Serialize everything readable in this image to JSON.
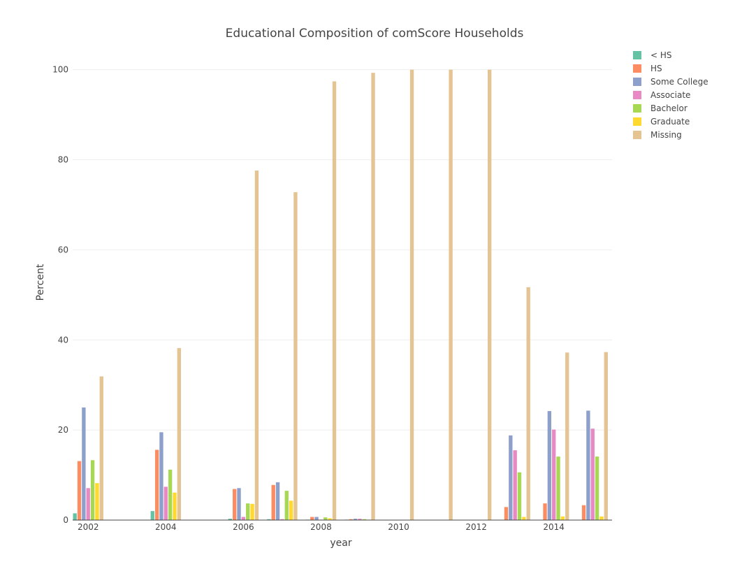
{
  "chart_data": {
    "type": "bar",
    "title": "Educational Composition of comScore Households",
    "xlabel": "year",
    "ylabel": "Percent",
    "x": [
      2002,
      2004,
      2006,
      2007,
      2008,
      2009,
      2010,
      2011,
      2012,
      2013,
      2014,
      2015
    ],
    "xlim": [
      2001.6,
      2015.5
    ],
    "ylim": [
      0,
      101.5
    ],
    "xticks": [
      2002,
      2004,
      2006,
      2008,
      2010,
      2012,
      2014
    ],
    "yticks": [
      0,
      20,
      40,
      60,
      80,
      100
    ],
    "grid": true,
    "legend_position": "top-right",
    "series": [
      {
        "name": "< HS",
        "color": "#66c2a5",
        "values": [
          1.5,
          2.0,
          0.3,
          0.2,
          0.1,
          0.1,
          0,
          0,
          0,
          0,
          0,
          0
        ]
      },
      {
        "name": "HS",
        "color": "#fc8d62",
        "values": [
          13.1,
          15.6,
          6.9,
          7.8,
          0.7,
          0.2,
          0,
          0,
          0,
          2.9,
          3.7,
          3.3
        ]
      },
      {
        "name": "Some College",
        "color": "#8da0cb",
        "values": [
          25.0,
          19.5,
          7.1,
          8.4,
          0.7,
          0.3,
          0,
          0,
          0,
          18.8,
          24.2,
          24.3
        ]
      },
      {
        "name": "Associate",
        "color": "#e78ac3",
        "values": [
          7.1,
          7.4,
          0.7,
          0.2,
          0.1,
          0.3,
          0,
          0,
          0,
          15.5,
          20.1,
          20.3
        ]
      },
      {
        "name": "Bachelor",
        "color": "#a6d854",
        "values": [
          13.3,
          11.2,
          3.7,
          6.5,
          0.6,
          0.2,
          0,
          0,
          0,
          10.6,
          14.1,
          14.1
        ]
      },
      {
        "name": "Graduate",
        "color": "#ffd92f",
        "values": [
          8.2,
          6.1,
          3.6,
          4.3,
          0.4,
          0.1,
          0,
          0,
          0,
          0.7,
          0.8,
          0.8
        ]
      },
      {
        "name": "Missing",
        "color": "#e5c494",
        "values": [
          31.9,
          38.2,
          77.6,
          72.8,
          97.4,
          99.3,
          100.0,
          100.0,
          100.0,
          51.7,
          37.2,
          37.3
        ]
      }
    ]
  }
}
